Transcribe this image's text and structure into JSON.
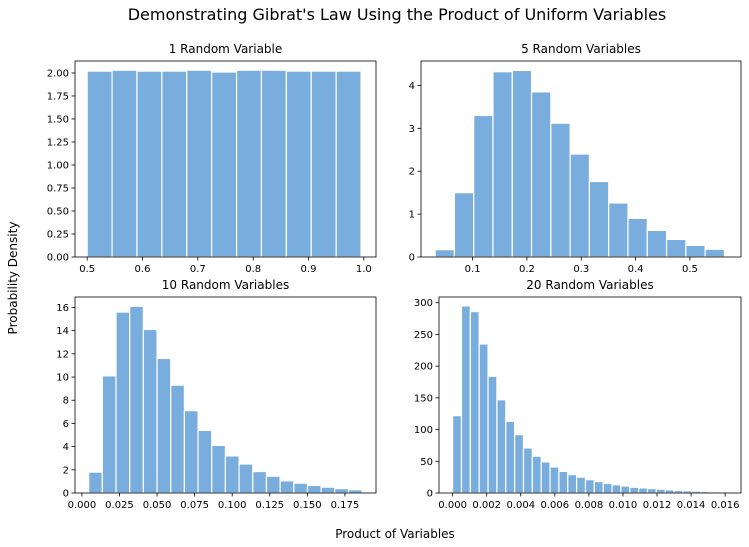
{
  "figure": {
    "title": "Demonstrating Gibrat's Law Using the Product of Uniform Variables",
    "xlabel": "Product of Variables",
    "ylabel": "Probability Density",
    "bar_color": "#5b9bd5"
  },
  "chart_data": [
    {
      "type": "bar",
      "title": "1 Random Variable",
      "bin_start": 0.5,
      "bin_width": 0.045,
      "values": [
        2.02,
        2.03,
        2.02,
        2.02,
        2.03,
        2.01,
        2.03,
        2.03,
        2.02,
        2.02,
        2.02
      ],
      "xlim": [
        0.478,
        1.022
      ],
      "ylim": [
        0,
        2.13
      ],
      "xticks": [
        0.5,
        0.6,
        0.7,
        0.8,
        0.9,
        1.0
      ],
      "xtick_labels": [
        "0.5",
        "0.6",
        "0.7",
        "0.8",
        "0.9",
        "1.0"
      ],
      "yticks": [
        0,
        0.25,
        0.5,
        0.75,
        1.0,
        1.25,
        1.5,
        1.75,
        2.0
      ],
      "ytick_labels": [
        "0.00",
        "0.25",
        "0.50",
        "0.75",
        "1.00",
        "1.25",
        "1.50",
        "1.75",
        "2.00"
      ]
    },
    {
      "type": "bar",
      "title": "5 Random Variables",
      "bin_start": 0.031,
      "bin_width": 0.0355,
      "values": [
        0.17,
        1.5,
        3.3,
        4.32,
        4.35,
        3.85,
        3.12,
        2.4,
        1.76,
        1.26,
        0.9,
        0.62,
        0.41,
        0.27,
        0.18
      ],
      "xlim": [
        0.005,
        0.594
      ],
      "ylim": [
        0,
        4.57
      ],
      "xticks": [
        0.1,
        0.2,
        0.3,
        0.4,
        0.5
      ],
      "xtick_labels": [
        "0.1",
        "0.2",
        "0.3",
        "0.4",
        "0.5"
      ],
      "yticks": [
        0,
        1,
        2,
        3,
        4
      ],
      "ytick_labels": [
        "0",
        "1",
        "2",
        "3",
        "4"
      ]
    },
    {
      "type": "bar",
      "title": "10 Random Variables",
      "bin_start": 0.0045,
      "bin_width": 0.0091,
      "values": [
        1.8,
        10.1,
        15.6,
        16.1,
        14.1,
        11.6,
        9.3,
        7.1,
        5.4,
        4.1,
        3.2,
        2.5,
        1.85,
        1.45,
        1.05,
        0.85,
        0.65,
        0.5,
        0.38,
        0.28
      ],
      "xlim": [
        -0.0046,
        0.1957
      ],
      "ylim": [
        0,
        16.9
      ],
      "xticks": [
        0.0,
        0.025,
        0.05,
        0.075,
        0.1,
        0.125,
        0.15,
        0.175
      ],
      "xtick_labels": [
        "0.000",
        "0.025",
        "0.050",
        "0.075",
        "0.100",
        "0.125",
        "0.150",
        "0.175"
      ],
      "yticks": [
        0,
        2,
        4,
        6,
        8,
        10,
        12,
        14,
        16
      ],
      "ytick_labels": [
        "0",
        "2",
        "4",
        "6",
        "8",
        "10",
        "12",
        "14",
        "16"
      ]
    },
    {
      "type": "bar",
      "title": "20 Random Variables",
      "bin_start": 0.0,
      "bin_width": 0.00052,
      "values": [
        122,
        295,
        286,
        235,
        184,
        147,
        113,
        92,
        71,
        58,
        49,
        41,
        34,
        29,
        25,
        21,
        18,
        15,
        13,
        11,
        9,
        8,
        7,
        6,
        5,
        4,
        3.5,
        3,
        2.5,
        2,
        1.5
      ],
      "xlim": [
        -0.0008,
        0.01693
      ],
      "ylim": [
        0,
        309
      ],
      "xticks": [
        0.0,
        0.002,
        0.004,
        0.006,
        0.008,
        0.01,
        0.012,
        0.014,
        0.016
      ],
      "xtick_labels": [
        "0.000",
        "0.002",
        "0.004",
        "0.006",
        "0.008",
        "0.010",
        "0.012",
        "0.014",
        "0.016"
      ],
      "yticks": [
        0,
        50,
        100,
        150,
        200,
        250,
        300
      ],
      "ytick_labels": [
        "0",
        "50",
        "100",
        "150",
        "200",
        "250",
        "300"
      ]
    }
  ]
}
